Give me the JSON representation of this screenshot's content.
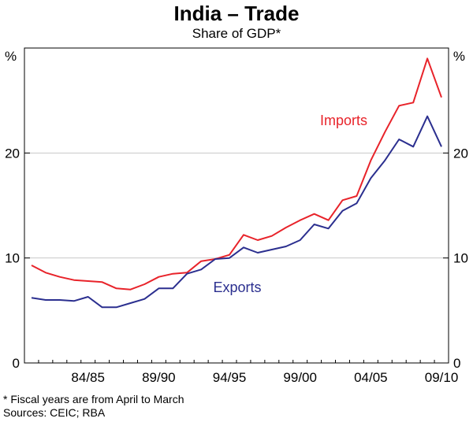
{
  "title": "India – Trade",
  "subtitle": "Share of GDP*",
  "unit_left": "%",
  "unit_right": "%",
  "footnotes": {
    "note": "*     Fiscal years are from April to March",
    "sources": "Sources: CEIC; RBA"
  },
  "colors": {
    "imports": "#e8232a",
    "exports": "#2b2f8f",
    "grid": "#c8c8c8",
    "axis": "#000000"
  },
  "chart_data": {
    "type": "line",
    "title": "India – Trade",
    "subtitle": "Share of GDP*",
    "ylim": [
      0,
      30
    ],
    "yticks": [
      0,
      10,
      20
    ],
    "x_tick_labels": [
      "84/85",
      "89/90",
      "94/95",
      "99/00",
      "04/05",
      "09/10"
    ],
    "grid": true,
    "x": [
      "80/81",
      "81/82",
      "82/83",
      "83/84",
      "84/85",
      "85/86",
      "86/87",
      "87/88",
      "88/89",
      "89/90",
      "90/91",
      "91/92",
      "92/93",
      "93/94",
      "94/95",
      "95/96",
      "96/97",
      "97/98",
      "98/99",
      "99/00",
      "00/01",
      "01/02",
      "02/03",
      "03/04",
      "04/05",
      "05/06",
      "06/07",
      "07/08",
      "08/09",
      "09/10"
    ],
    "series": [
      {
        "name": "Imports",
        "values": [
          9.3,
          8.6,
          8.2,
          7.9,
          7.8,
          7.7,
          7.1,
          7.0,
          7.5,
          8.2,
          8.5,
          8.6,
          9.7,
          9.9,
          10.3,
          12.2,
          11.7,
          12.1,
          12.9,
          13.6,
          14.2,
          13.6,
          15.5,
          15.9,
          19.3,
          22.0,
          24.5,
          24.8,
          29.0,
          25.3
        ]
      },
      {
        "name": "Exports",
        "values": [
          6.2,
          6.0,
          6.0,
          5.9,
          6.3,
          5.3,
          5.3,
          5.7,
          6.1,
          7.1,
          7.1,
          8.5,
          8.9,
          9.9,
          10.0,
          11.0,
          10.5,
          10.8,
          11.1,
          11.7,
          13.2,
          12.8,
          14.5,
          15.2,
          17.6,
          19.3,
          21.3,
          20.6,
          23.5,
          20.6
        ]
      }
    ]
  }
}
